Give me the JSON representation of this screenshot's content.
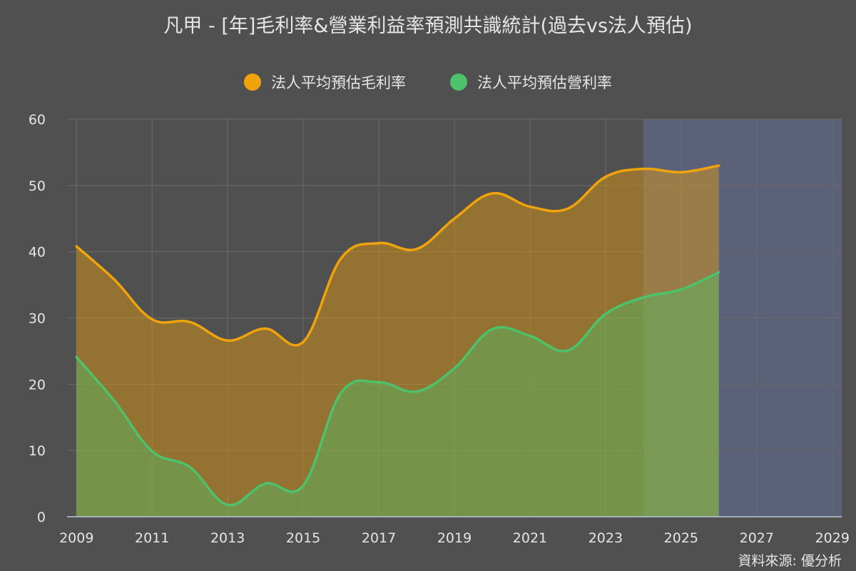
{
  "title": "凡甲 - [年]毛利率&營業利益率預測共識統計(過去vs法人預估)",
  "source": "資料來源: 優分析",
  "colors": {
    "background": "#505050",
    "gross": "#f0a30a",
    "operating": "#4cc26a",
    "forecast_band": "#5a6178",
    "grid": "#6a6a6a",
    "axis": "#b8c8d8"
  },
  "chart_data": {
    "type": "area",
    "title": "凡甲 - [年]毛利率&營業利益率預測共識統計(過去vs法人預估)",
    "x": [
      2009,
      2010,
      2011,
      2012,
      2013,
      2014,
      2015,
      2016,
      2017,
      2018,
      2019,
      2020,
      2021,
      2022,
      2023,
      2024,
      2025,
      2026
    ],
    "series": [
      {
        "name": "法人平均預估毛利率",
        "values": [
          40.8,
          35.8,
          29.8,
          29.4,
          26.6,
          28.4,
          26.4,
          39.0,
          41.3,
          40.4,
          45.0,
          48.8,
          46.8,
          46.5,
          51.3,
          52.5,
          52.0,
          53.0
        ]
      },
      {
        "name": "法人平均預估營利率",
        "values": [
          24.1,
          17.5,
          9.9,
          7.5,
          1.8,
          5.0,
          4.7,
          18.7,
          20.3,
          18.9,
          22.4,
          28.3,
          27.3,
          25.1,
          30.6,
          33.1,
          34.3,
          36.9
        ]
      }
    ],
    "x_ticks": [
      2009,
      2011,
      2013,
      2015,
      2017,
      2019,
      2021,
      2023,
      2025,
      2027,
      2029
    ],
    "y_ticks": [
      0,
      10,
      20,
      30,
      40,
      50,
      60
    ],
    "xlim": [
      2008.75,
      2029.25
    ],
    "ylim": [
      0,
      60
    ],
    "forecast_range": [
      2024,
      2029.25
    ],
    "grid": true,
    "legend_position": "top-center"
  }
}
